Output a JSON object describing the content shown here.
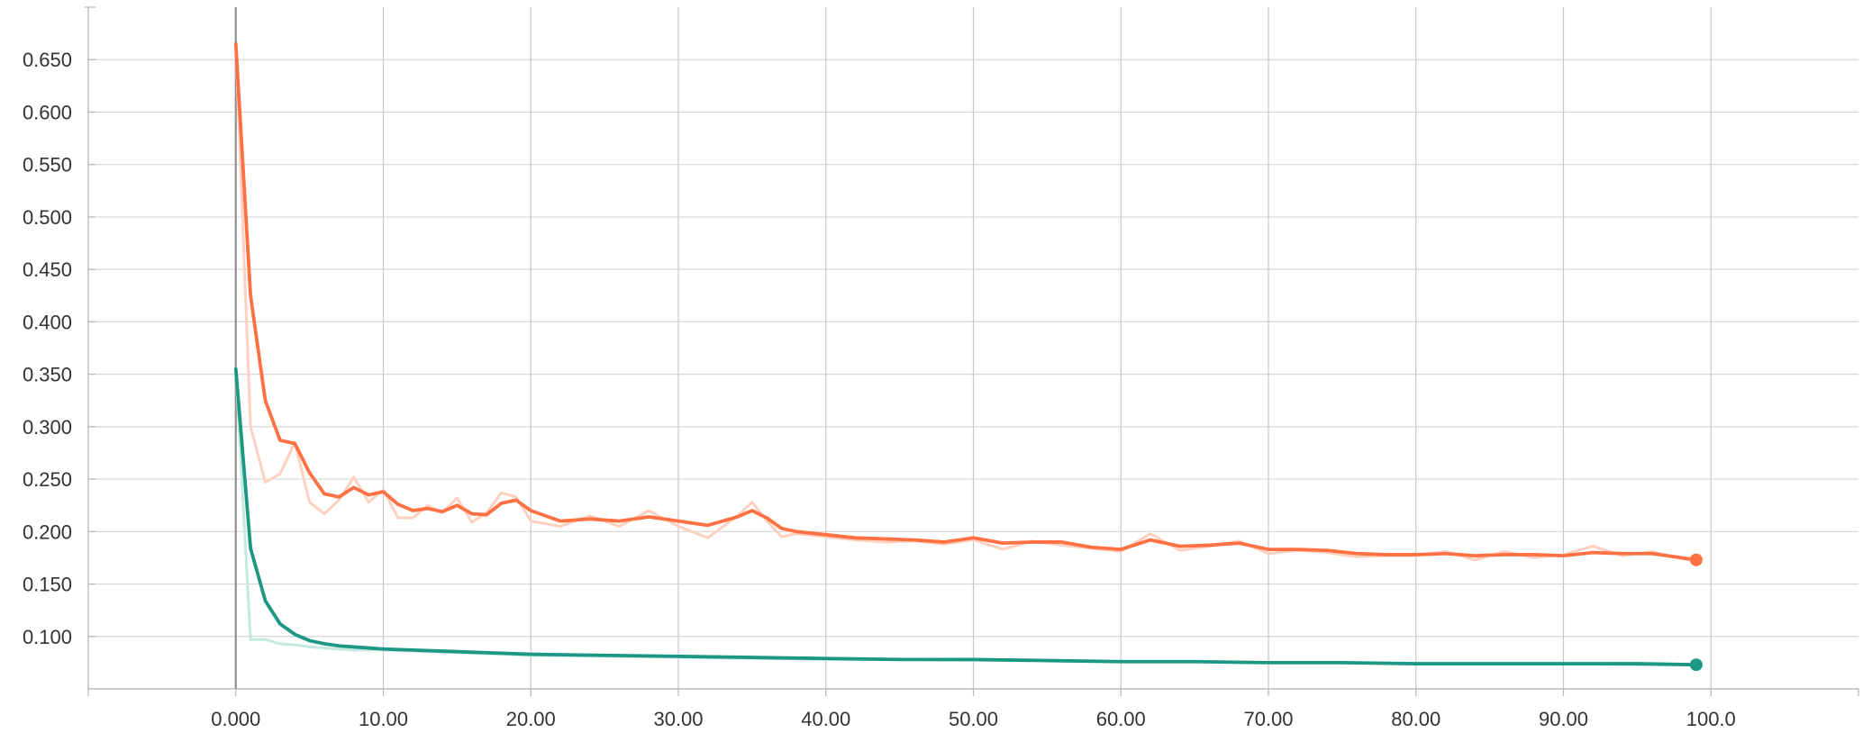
{
  "chart_data": {
    "type": "line",
    "x_tick_labels": [
      "0.000",
      "10.00",
      "20.00",
      "30.00",
      "40.00",
      "50.00",
      "60.00",
      "70.00",
      "80.00",
      "90.00",
      "100.0"
    ],
    "y_tick_labels": [
      "0.100",
      "0.150",
      "0.200",
      "0.250",
      "0.300",
      "0.350",
      "0.400",
      "0.450",
      "0.500",
      "0.550",
      "0.600",
      "0.650"
    ],
    "x_ticks": [
      0,
      10,
      20,
      30,
      40,
      50,
      60,
      70,
      80,
      90,
      100
    ],
    "y_ticks": [
      0.1,
      0.15,
      0.2,
      0.25,
      0.3,
      0.35,
      0.4,
      0.45,
      0.5,
      0.55,
      0.6,
      0.65
    ],
    "xlim": [
      -10,
      110
    ],
    "ylim": [
      0.05,
      0.7
    ],
    "grid": true,
    "legend": "none",
    "series": [
      {
        "color": "#ff7043",
        "raw_color": "#ffd0c0",
        "x": [
          0,
          1,
          2,
          3,
          4,
          5,
          6,
          7,
          8,
          9,
          10,
          11,
          12,
          13,
          14,
          15,
          16,
          17,
          18,
          19,
          20,
          22,
          24,
          26,
          28,
          30,
          32,
          34,
          35,
          36,
          37,
          38,
          40,
          42,
          44,
          46,
          48,
          50,
          52,
          54,
          56,
          58,
          60,
          62,
          64,
          66,
          68,
          70,
          72,
          74,
          76,
          78,
          80,
          82,
          84,
          86,
          88,
          90,
          92,
          94,
          96,
          98,
          99
        ],
        "smoothed": [
          0.665,
          0.425,
          0.325,
          0.287,
          0.284,
          0.256,
          0.236,
          0.233,
          0.242,
          0.235,
          0.238,
          0.226,
          0.22,
          0.222,
          0.219,
          0.225,
          0.217,
          0.216,
          0.227,
          0.23,
          0.22,
          0.21,
          0.212,
          0.21,
          0.214,
          0.21,
          0.206,
          0.214,
          0.22,
          0.213,
          0.203,
          0.2,
          0.197,
          0.194,
          0.193,
          0.192,
          0.19,
          0.194,
          0.189,
          0.19,
          0.19,
          0.185,
          0.183,
          0.192,
          0.186,
          0.187,
          0.189,
          0.183,
          0.183,
          0.182,
          0.179,
          0.178,
          0.178,
          0.179,
          0.177,
          0.178,
          0.178,
          0.177,
          0.18,
          0.179,
          0.179,
          0.175,
          0.173
        ],
        "raw": [
          0.665,
          0.3,
          0.247,
          0.255,
          0.285,
          0.228,
          0.217,
          0.23,
          0.252,
          0.228,
          0.24,
          0.213,
          0.213,
          0.225,
          0.218,
          0.232,
          0.209,
          0.218,
          0.237,
          0.233,
          0.21,
          0.205,
          0.215,
          0.205,
          0.22,
          0.205,
          0.194,
          0.215,
          0.228,
          0.21,
          0.195,
          0.198,
          0.195,
          0.192,
          0.19,
          0.191,
          0.188,
          0.192,
          0.183,
          0.191,
          0.187,
          0.184,
          0.181,
          0.198,
          0.182,
          0.186,
          0.191,
          0.179,
          0.182,
          0.18,
          0.176,
          0.177,
          0.177,
          0.181,
          0.173,
          0.181,
          0.175,
          0.178,
          0.186,
          0.177,
          0.181,
          0.174,
          0.173
        ]
      },
      {
        "color": "#1b9783",
        "raw_color": "#c5e8e1",
        "x": [
          0,
          1,
          2,
          3,
          4,
          5,
          6,
          7,
          8,
          9,
          10,
          12,
          14,
          16,
          18,
          20,
          25,
          30,
          35,
          40,
          45,
          50,
          55,
          60,
          65,
          70,
          75,
          80,
          85,
          90,
          95,
          99
        ],
        "smoothed": [
          0.355,
          0.184,
          0.134,
          0.112,
          0.102,
          0.096,
          0.093,
          0.091,
          0.09,
          0.089,
          0.088,
          0.087,
          0.086,
          0.085,
          0.084,
          0.083,
          0.082,
          0.081,
          0.08,
          0.079,
          0.078,
          0.078,
          0.077,
          0.076,
          0.076,
          0.075,
          0.075,
          0.074,
          0.074,
          0.074,
          0.074,
          0.073
        ],
        "raw": [
          0.355,
          0.097,
          0.097,
          0.093,
          0.092,
          0.09,
          0.089,
          0.088,
          0.087,
          0.087,
          0.087,
          0.086,
          0.085,
          0.084,
          0.083,
          0.082,
          0.081,
          0.08,
          0.079,
          0.078,
          0.078,
          0.077,
          0.077,
          0.076,
          0.076,
          0.075,
          0.075,
          0.074,
          0.074,
          0.074,
          0.073,
          0.073
        ]
      }
    ]
  }
}
